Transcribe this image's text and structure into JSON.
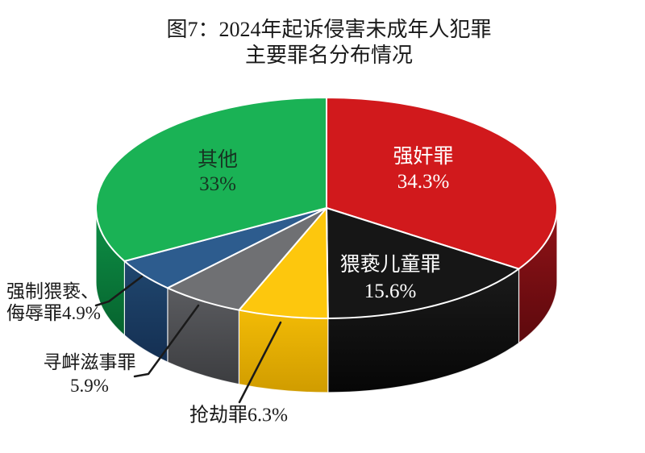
{
  "chart_data": {
    "type": "pie",
    "style": "3d-pie",
    "title": "图7：2024年起诉侵害未成年人犯罪主要罪名分布情况",
    "title_lines": [
      "图7：2024年起诉侵害未成年人犯罪",
      "主要罪名分布情况"
    ],
    "legend_position": "none",
    "background": "#ffffff",
    "callout_line_color": "#1a1a1a",
    "start_angle": "12-oclock",
    "direction": "clockwise",
    "slices": [
      {
        "id": "qiangjian",
        "name": "强奸罪",
        "value": 34.3,
        "pct_label": "34.3%",
        "color": "#d1191c",
        "side_colors": [
          "#931318",
          "#5c090d"
        ],
        "label_placement": "inside",
        "label_color": "#ffffff",
        "label_lines": [
          "强奸罪",
          "34.3%"
        ]
      },
      {
        "id": "weixie",
        "name": "猥亵儿童罪",
        "value": 15.6,
        "pct_label": "15.6%",
        "color": "#161616",
        "side_colors": [
          "#1b1b1b",
          "#060606"
        ],
        "label_placement": "inside",
        "label_color": "#ffffff",
        "label_lines": [
          "猥亵儿童罪",
          "15.6%"
        ]
      },
      {
        "id": "qiangjie",
        "name": "抢劫罪",
        "value": 6.3,
        "pct_label": "6.3%",
        "color": "#fdc70d",
        "side_colors": [
          "#f2bb06",
          "#d09c00"
        ],
        "label_placement": "outside-callout",
        "label_color": "#1a1a1a",
        "label_lines": [
          "抢劫罪6.3%"
        ]
      },
      {
        "id": "xunxin",
        "name": "寻衅滋事罪",
        "value": 5.9,
        "pct_label": "5.9%",
        "color": "#6f7073",
        "side_colors": [
          "#5b5c60",
          "#3c3d40"
        ],
        "label_placement": "outside-callout",
        "label_color": "#1a1a1a",
        "label_lines": [
          "寻衅滋事罪",
          "5.9%"
        ]
      },
      {
        "id": "qiangzhi",
        "name": "强制猥亵、侮辱罪",
        "value": 4.9,
        "pct_label": "4.9%",
        "color": "#2d5c8e",
        "side_colors": [
          "#20476f",
          "#142f52"
        ],
        "label_placement": "outside-callout",
        "label_color": "#1a1a1a",
        "label_lines": [
          "强制猥亵、",
          "侮辱罪4.9%"
        ]
      },
      {
        "id": "qita",
        "name": "其他",
        "value": 33,
        "pct_label": "33%",
        "color": "#1ab255",
        "side_colors": [
          "#0e9147",
          "#06632e"
        ],
        "label_placement": "inside",
        "label_color": "#173322",
        "label_lines": [
          "其他",
          "33%"
        ]
      }
    ]
  }
}
